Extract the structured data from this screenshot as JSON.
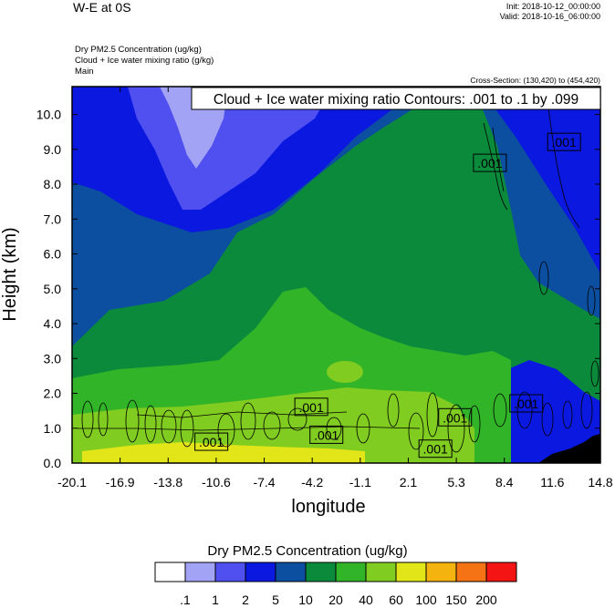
{
  "header": {
    "title": "W-E at 0S",
    "init": "Init: 2018-10-12_00:00:00",
    "valid": "Valid: 2018-10-16_06:00:00",
    "field1": "Dry PM2.5 Concentration   (ug/kg)",
    "field2": "Cloud + Ice water mixing ratio   (g/kg)",
    "field3": "Main",
    "cross_section": "Cross-Section: (130,420) to (454,420)"
  },
  "chart_data": {
    "type": "heatmap",
    "title": "W-E at 0S",
    "xlabel": "longitude",
    "ylabel": "Height (km)",
    "xlim": [
      -20.1,
      14.8
    ],
    "ylim": [
      0,
      10.8
    ],
    "x_ticks": [
      "-20.1",
      "-16.9",
      "-13.8",
      "-10.6",
      "-7.4",
      "-4.2",
      "-1.1",
      "2.1",
      "5.3",
      "8.4",
      "11.6",
      "14.8"
    ],
    "y_ticks": [
      "0.0",
      "1.0",
      "2.0",
      "3.0",
      "4.0",
      "5.0",
      "6.0",
      "7.0",
      "8.0",
      "9.0",
      "10.0"
    ],
    "contour_annotation": "Cloud + Ice water mixing ratio Contours: .001 to .1 by .099",
    "contour_labels": [
      {
        "text": ".001",
        "x": -10.9,
        "y": 0.6
      },
      {
        "text": ".001",
        "x": -4.3,
        "y": 1.6
      },
      {
        "text": ".001",
        "x": -3.3,
        "y": 0.8
      },
      {
        "text": ".001",
        "x": 3.9,
        "y": 0.4
      },
      {
        "text": ".001",
        "x": 5.2,
        "y": 1.3
      },
      {
        "text": ".001",
        "x": 7.5,
        "y": 8.6
      },
      {
        "text": ".001",
        "x": 9.9,
        "y": 1.7
      },
      {
        "text": ".001",
        "x": 12.4,
        "y": 9.2
      }
    ],
    "colorbar": {
      "title": "Dry PM2.5 Concentration  (ug/kg)",
      "levels": [
        ".1",
        "1",
        "2",
        "5",
        "10",
        "20",
        "40",
        "60",
        "100",
        "150",
        "200"
      ],
      "colors": [
        "#ffffff",
        "#a3a3f5",
        "#5050f0",
        "#0a18e0",
        "#0c4ea0",
        "#0c8a3c",
        "#32b428",
        "#80cc20",
        "#e2e619",
        "#f5b30f",
        "#f57314",
        "#f51414"
      ]
    }
  }
}
